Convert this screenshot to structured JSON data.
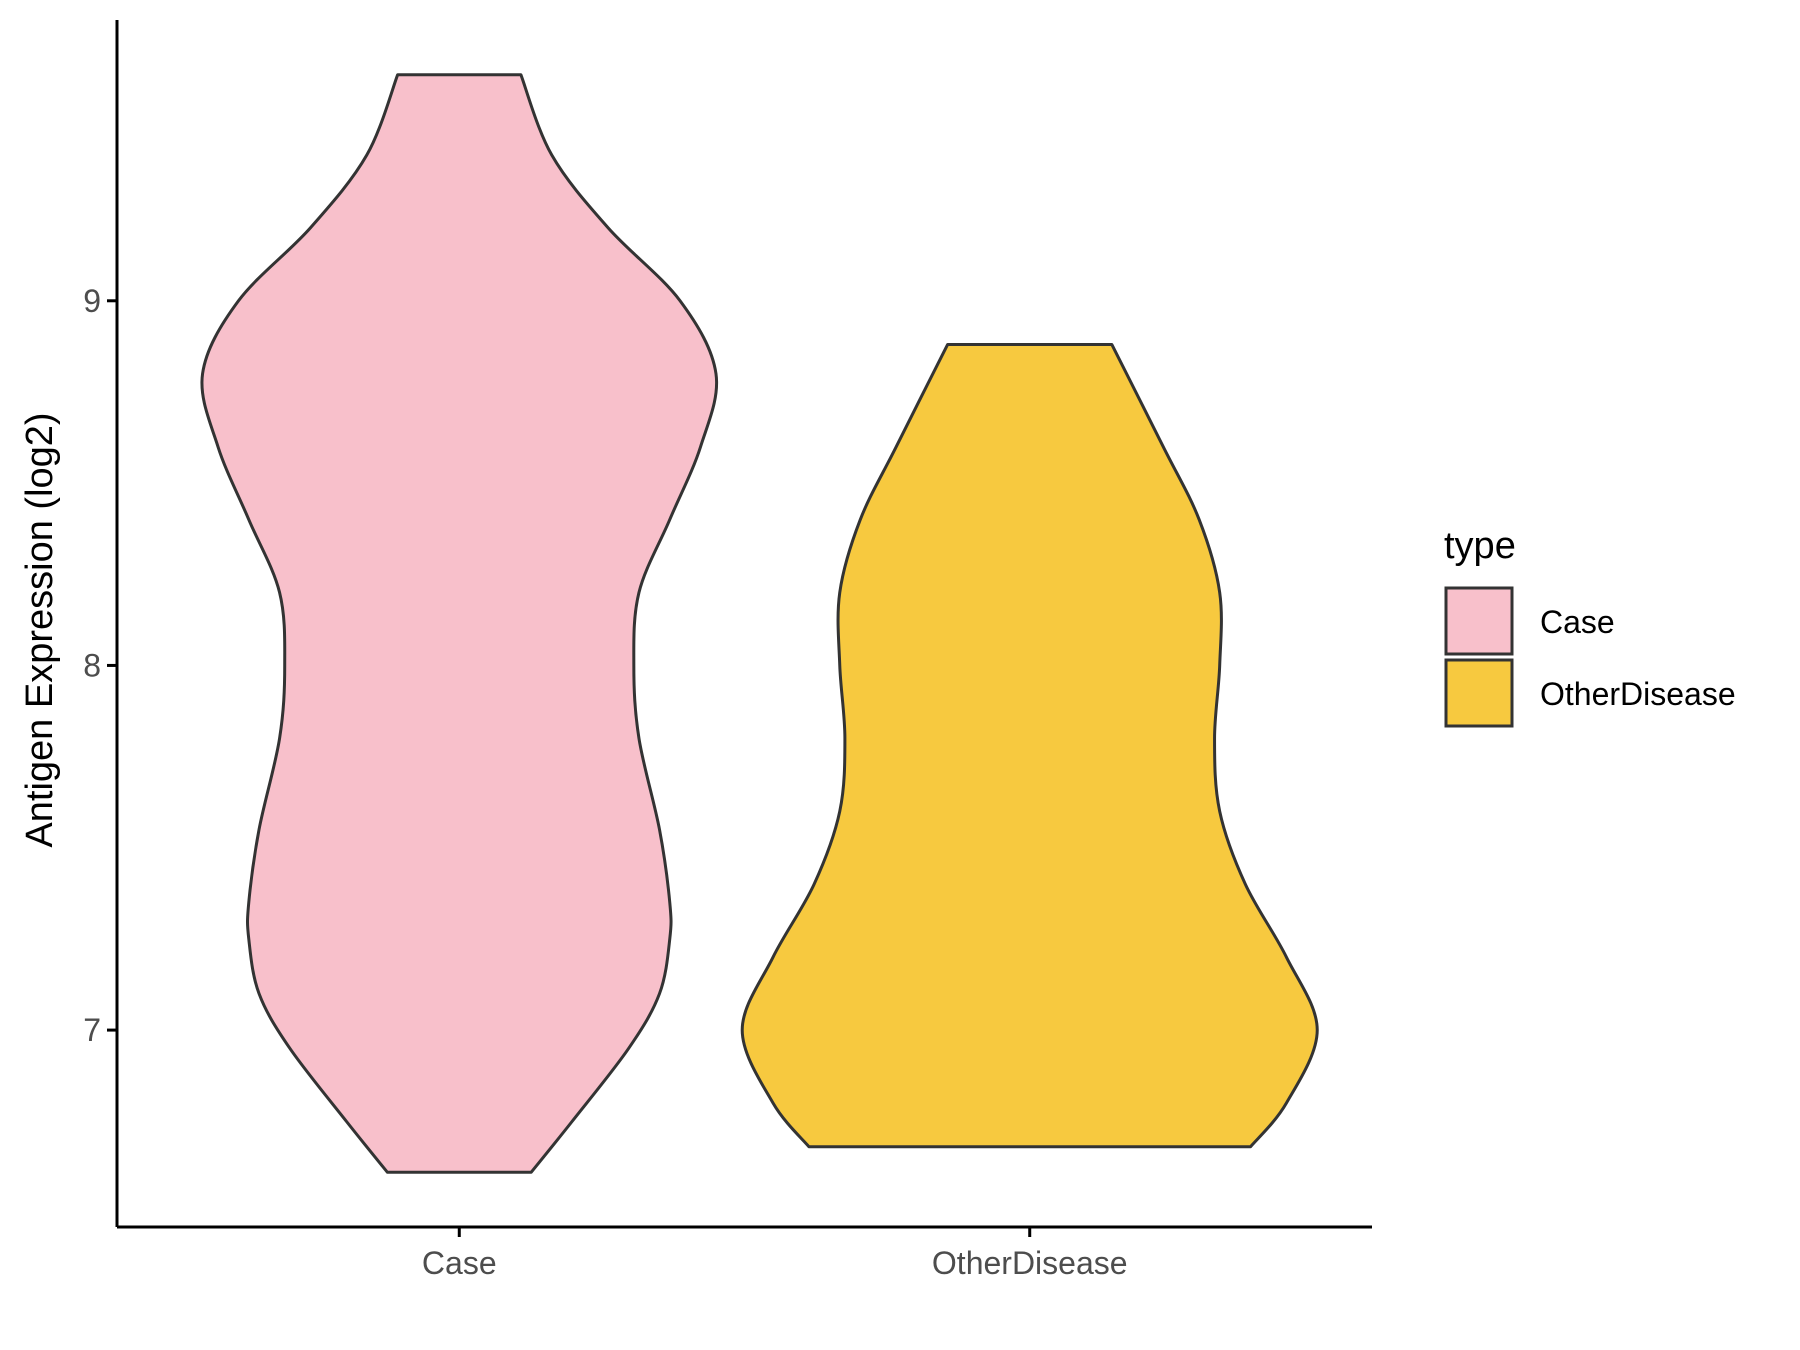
{
  "chart_data": {
    "type": "violin",
    "title": "",
    "xlabel": "",
    "ylabel": "Antigen Expression (log2)",
    "ylim": [
      6.46,
      9.77
    ],
    "yticks": [
      7,
      8,
      9
    ],
    "categories": [
      "Case",
      "OtherDisease"
    ],
    "legend": {
      "title": "type",
      "position": "right"
    },
    "series": [
      {
        "name": "Case",
        "color": "#F8C0CB",
        "min": 6.61,
        "max": 9.62,
        "max_half_width": 0.5,
        "density_profile": [
          [
            6.61,
            0.14
          ],
          [
            6.75,
            0.22
          ],
          [
            6.95,
            0.33
          ],
          [
            7.1,
            0.39
          ],
          [
            7.25,
            0.41
          ],
          [
            7.35,
            0.41
          ],
          [
            7.55,
            0.39
          ],
          [
            7.8,
            0.35
          ],
          [
            8.0,
            0.34
          ],
          [
            8.2,
            0.35
          ],
          [
            8.4,
            0.41
          ],
          [
            8.6,
            0.47
          ],
          [
            8.8,
            0.5
          ],
          [
            9.0,
            0.43
          ],
          [
            9.2,
            0.29
          ],
          [
            9.4,
            0.18
          ],
          [
            9.62,
            0.12
          ]
        ]
      },
      {
        "name": "OtherDisease",
        "color": "#F7C93F",
        "min": 6.68,
        "max": 8.88,
        "max_half_width": 0.56,
        "density_profile": [
          [
            6.68,
            0.43
          ],
          [
            6.8,
            0.5
          ],
          [
            7.0,
            0.56
          ],
          [
            7.2,
            0.5
          ],
          [
            7.4,
            0.42
          ],
          [
            7.6,
            0.37
          ],
          [
            7.8,
            0.36
          ],
          [
            8.0,
            0.37
          ],
          [
            8.2,
            0.37
          ],
          [
            8.4,
            0.33
          ],
          [
            8.6,
            0.26
          ],
          [
            8.88,
            0.16
          ]
        ]
      }
    ]
  }
}
